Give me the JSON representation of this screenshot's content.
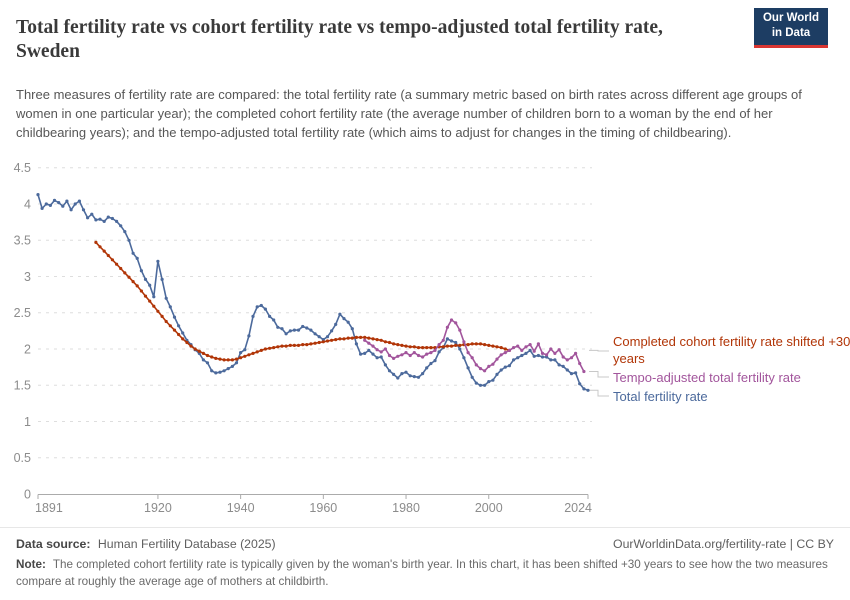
{
  "header": {
    "title": "Total fertility rate vs cohort fertility rate vs tempo-adjusted total fertility rate, Sweden",
    "subtitle": "Three measures of fertility rate are compared: the total fertility rate (a summary metric based on birth rates across different age groups of women in one particular year); the completed cohort fertility rate (the average number of children born to a woman by the end of her childbearing years); and the tempo-adjusted total fertility rate (which aims to adjust for changes in the timing of childbearing).",
    "logo": {
      "line1": "Our World",
      "line2": "in Data",
      "bg": "#1d3d63",
      "stripe": "#d93632"
    }
  },
  "footer": {
    "source_label": "Data source:",
    "source_value": "Human Fertility Database (2025)",
    "link": "OurWorldinData.org/fertility-rate | CC BY",
    "note_label": "Note:",
    "note_value": "The completed cohort fertility rate is typically given by the woman's birth year. In this chart, it has been shifted +30 years to see how the two measures compare at roughly the average age of mothers at childbirth."
  },
  "chart_data": {
    "type": "line",
    "title": "Total fertility rate vs cohort fertility rate vs tempo-adjusted total fertility rate, Sweden",
    "x": {
      "min": 1891,
      "max": 2024,
      "ticks": [
        1891,
        1920,
        1940,
        1960,
        1980,
        2000,
        2024
      ]
    },
    "y": {
      "min": 0,
      "max": 4.5,
      "ticks": [
        0,
        0.5,
        1,
        1.5,
        2,
        2.5,
        3,
        3.5,
        4,
        4.5
      ]
    },
    "grid": "horizontal-dashed",
    "legend_position": "right",
    "series": [
      {
        "name": "Total fertility rate",
        "color": "#4C6A9C",
        "start_year": 1891,
        "values": [
          4.13,
          3.94,
          4.0,
          3.98,
          4.05,
          4.02,
          3.97,
          4.04,
          3.92,
          4.0,
          4.04,
          3.92,
          3.81,
          3.86,
          3.78,
          3.79,
          3.76,
          3.82,
          3.8,
          3.76,
          3.7,
          3.62,
          3.5,
          3.32,
          3.25,
          3.08,
          2.96,
          2.88,
          2.72,
          3.21,
          2.96,
          2.7,
          2.58,
          2.44,
          2.32,
          2.22,
          2.12,
          2.06,
          1.99,
          1.94,
          1.85,
          1.81,
          1.7,
          1.67,
          1.68,
          1.7,
          1.73,
          1.76,
          1.81,
          1.95,
          1.99,
          2.18,
          2.45,
          2.58,
          2.6,
          2.55,
          2.45,
          2.4,
          2.3,
          2.28,
          2.21,
          2.25,
          2.26,
          2.26,
          2.31,
          2.29,
          2.26,
          2.21,
          2.17,
          2.13,
          2.17,
          2.25,
          2.34,
          2.48,
          2.42,
          2.37,
          2.28,
          2.07,
          1.93,
          1.94,
          1.98,
          1.93,
          1.88,
          1.89,
          1.78,
          1.7,
          1.65,
          1.6,
          1.66,
          1.68,
          1.63,
          1.62,
          1.61,
          1.66,
          1.74,
          1.8,
          1.84,
          1.96,
          2.02,
          2.14,
          2.11,
          2.09,
          2.0,
          1.88,
          1.74,
          1.61,
          1.53,
          1.5,
          1.5,
          1.55,
          1.57,
          1.65,
          1.71,
          1.75,
          1.77,
          1.85,
          1.88,
          1.91,
          1.94,
          1.98,
          1.9,
          1.91,
          1.89,
          1.89,
          1.85,
          1.85,
          1.78,
          1.76,
          1.71,
          1.66,
          1.67,
          1.52,
          1.45,
          1.43
        ]
      },
      {
        "name": "Completed cohort fertility rate shifted +30 years",
        "color": "#B13507",
        "start_year": 1905,
        "values": [
          3.47,
          3.41,
          3.35,
          3.29,
          3.23,
          3.17,
          3.11,
          3.05,
          2.99,
          2.93,
          2.87,
          2.8,
          2.73,
          2.66,
          2.59,
          2.52,
          2.45,
          2.38,
          2.32,
          2.26,
          2.2,
          2.14,
          2.09,
          2.04,
          2.0,
          1.97,
          1.94,
          1.91,
          1.89,
          1.87,
          1.86,
          1.85,
          1.85,
          1.85,
          1.86,
          1.88,
          1.9,
          1.92,
          1.94,
          1.96,
          1.98,
          2.0,
          2.01,
          2.02,
          2.03,
          2.04,
          2.04,
          2.05,
          2.05,
          2.05,
          2.06,
          2.06,
          2.07,
          2.08,
          2.09,
          2.1,
          2.11,
          2.12,
          2.13,
          2.14,
          2.14,
          2.15,
          2.15,
          2.16,
          2.16,
          2.16,
          2.15,
          2.14,
          2.13,
          2.12,
          2.1,
          2.09,
          2.07,
          2.06,
          2.05,
          2.04,
          2.03,
          2.03,
          2.02,
          2.02,
          2.02,
          2.02,
          2.02,
          2.03,
          2.03,
          2.04,
          2.04,
          2.05,
          2.05,
          2.06,
          2.06,
          2.07,
          2.07,
          2.07,
          2.06,
          2.05,
          2.04,
          2.03,
          2.02,
          2.0,
          1.98
        ]
      },
      {
        "name": "Tempo-adjusted total fertility rate",
        "color": "#A2559C",
        "start_year": 1970,
        "values": [
          2.12,
          2.08,
          2.04,
          1.99,
          1.96,
          2.0,
          1.91,
          1.87,
          1.9,
          1.92,
          1.95,
          1.91,
          1.95,
          1.91,
          1.89,
          1.93,
          1.95,
          1.98,
          2.06,
          2.12,
          2.3,
          2.4,
          2.36,
          2.26,
          2.1,
          1.95,
          1.88,
          1.78,
          1.73,
          1.7,
          1.76,
          1.79,
          1.86,
          1.92,
          1.95,
          1.98,
          2.02,
          2.04,
          1.98,
          2.03,
          2.06,
          1.97,
          2.07,
          1.94,
          1.92,
          2.0,
          1.94,
          1.99,
          1.89,
          1.85,
          1.88,
          1.94,
          1.8,
          1.69
        ]
      }
    ],
    "legend": [
      {
        "label": "Completed cohort fertility rate shifted +30 years",
        "color": "#B13507"
      },
      {
        "label": "Tempo-adjusted total fertility rate",
        "color": "#A2559C"
      },
      {
        "label": "Total fertility rate",
        "color": "#4C6A9C"
      }
    ]
  }
}
